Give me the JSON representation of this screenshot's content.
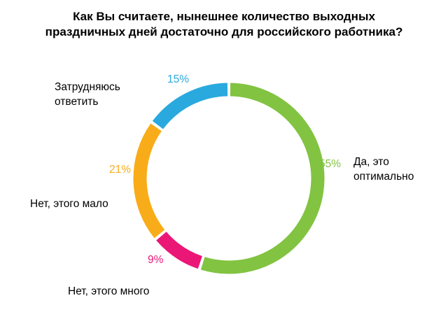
{
  "title": {
    "line1": "Как Вы считаете, нынешнее количество выходных",
    "line2": "праздничных дней достаточно для российского работника?"
  },
  "chart_data": {
    "type": "pie",
    "subtype": "donut",
    "title": "Как Вы считаете, нынешнее количество выходных праздничных дней достаточно для российского работника?",
    "start_angle_deg": 0,
    "direction": "clockwise",
    "units": "%",
    "legend_position": "around-chart",
    "segments": [
      {
        "id": "optimal",
        "label": "Да, это оптимально",
        "value": 55,
        "percent_label": "55%",
        "color": "#82C341"
      },
      {
        "id": "many",
        "label": "Нет, этого много",
        "value": 9,
        "percent_label": "9%",
        "color": "#EA1777"
      },
      {
        "id": "few",
        "label": "Нет, этого мало",
        "value": 21,
        "percent_label": "21%",
        "color": "#F9AC19"
      },
      {
        "id": "undecided",
        "label": "Затрудняюсь ответить",
        "value": 15,
        "percent_label": "15%",
        "color": "#29A9DE"
      }
    ]
  }
}
